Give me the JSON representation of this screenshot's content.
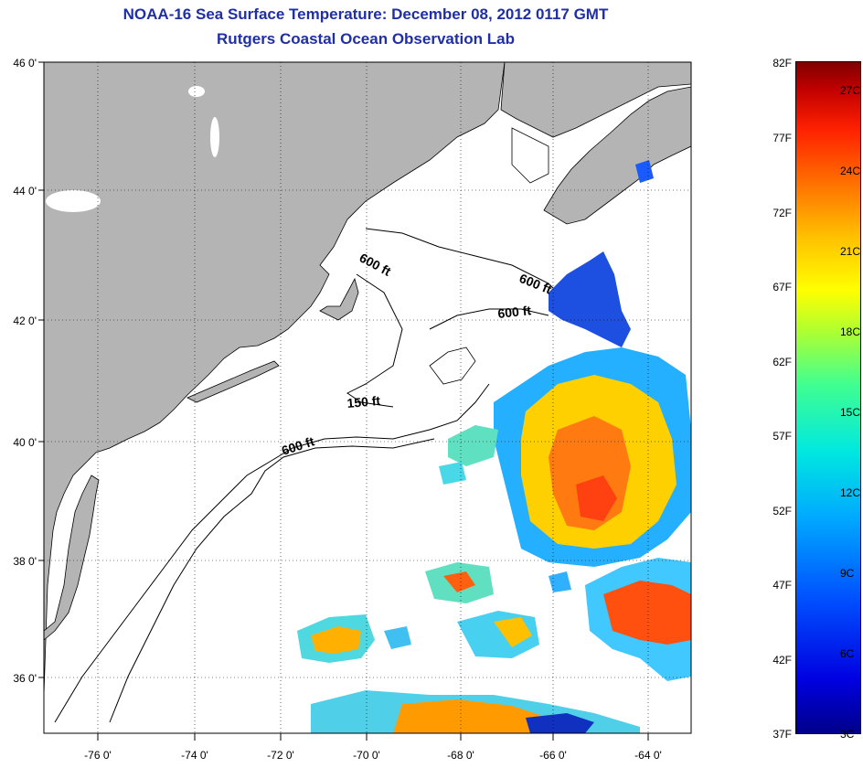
{
  "title": {
    "line1": "NOAA-16 Sea Surface Temperature:  December 08, 2012 0117 GMT",
    "line2": "Rutgers Coastal Ocean Observation Lab"
  },
  "map": {
    "latitude_labels": [
      "46 0'",
      "44 0'",
      "42 0'",
      "40 0'",
      "38 0'",
      "36 0'"
    ],
    "longitude_labels": [
      "-76 0'",
      "-74 0'",
      "-72 0'",
      "-70 0'",
      "-68 0'",
      "-66 0'",
      "-64 0'"
    ],
    "contour_labels": [
      "600 ft",
      "600 ft",
      "600 ft",
      "150 ft",
      "600 ft"
    ],
    "colors": {
      "land": "#b4b4b4",
      "ocean_nodata": "#ffffff",
      "coastline": "#000000"
    }
  },
  "colorbar": {
    "fahrenheit_labels": [
      "82F",
      "77F",
      "72F",
      "67F",
      "62F",
      "57F",
      "52F",
      "47F",
      "42F",
      "37F"
    ],
    "celsius_labels": [
      "27C",
      "24C",
      "21C",
      "18C",
      "15C",
      "12C",
      "9C",
      "6C",
      "3C"
    ],
    "range_f": [
      37,
      82
    ],
    "range_c": [
      3,
      27.8
    ]
  }
}
